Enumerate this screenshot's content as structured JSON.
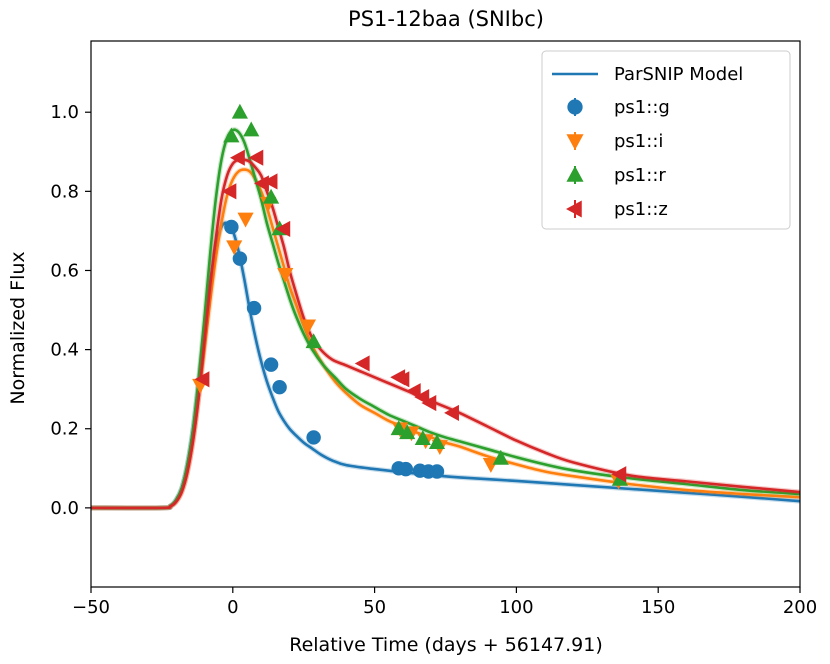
{
  "chart_data": {
    "type": "scatter",
    "title": "PS1-12baa (SNIbc)",
    "xlabel": "Relative Time (days + 56147.91)",
    "ylabel": "Normalized Flux",
    "xlim": [
      -50,
      200
    ],
    "ylim": [
      -0.2,
      1.18
    ],
    "x_ticks": [
      -50,
      0,
      50,
      100,
      150,
      200
    ],
    "x_tick_labels": [
      "−50",
      "0",
      "50",
      "100",
      "150",
      "200"
    ],
    "y_ticks": [
      0.0,
      0.2,
      0.4,
      0.6,
      0.8,
      1.0
    ],
    "y_tick_labels": [
      "0.0",
      "0.2",
      "0.4",
      "0.6",
      "0.8",
      "1.0"
    ],
    "grid": false,
    "legend_position": "top-right",
    "model_label": "ParSNIP Model",
    "model_curves": [
      {
        "band": "ps1::g",
        "color": "#1f77b4",
        "x": [
          -50,
          -25,
          -22,
          -20,
          -18,
          -16,
          -14,
          -12,
          -10,
          -8,
          -6,
          -4,
          -2,
          0,
          2,
          4,
          6,
          8,
          10,
          12,
          14,
          16,
          18,
          20,
          22,
          25,
          28,
          31,
          35,
          40,
          50,
          60,
          70,
          80,
          100,
          120,
          140,
          160,
          180,
          200
        ],
        "y": [
          0,
          0,
          0.005,
          0.02,
          0.05,
          0.11,
          0.2,
          0.32,
          0.45,
          0.57,
          0.66,
          0.71,
          0.72,
          0.7,
          0.65,
          0.58,
          0.5,
          0.43,
          0.37,
          0.32,
          0.28,
          0.245,
          0.22,
          0.2,
          0.185,
          0.165,
          0.15,
          0.135,
          0.12,
          0.108,
          0.098,
          0.09,
          0.083,
          0.077,
          0.068,
          0.058,
          0.048,
          0.038,
          0.028,
          0.017
        ]
      },
      {
        "band": "ps1::i",
        "color": "#ff7f0e",
        "x": [
          -50,
          -25,
          -22,
          -20,
          -18,
          -16,
          -14,
          -12,
          -10,
          -8,
          -6,
          -4,
          -2,
          0,
          2,
          4,
          6,
          8,
          10,
          12,
          14,
          16,
          18,
          20,
          22,
          25,
          28,
          32,
          36,
          40,
          45,
          50,
          55,
          60,
          65,
          70,
          75,
          80,
          90,
          100,
          110,
          120,
          140,
          160,
          180,
          200
        ],
        "y": [
          0,
          0,
          0.004,
          0.015,
          0.04,
          0.09,
          0.17,
          0.28,
          0.4,
          0.52,
          0.63,
          0.72,
          0.79,
          0.83,
          0.85,
          0.855,
          0.85,
          0.83,
          0.8,
          0.76,
          0.71,
          0.66,
          0.61,
          0.56,
          0.52,
          0.46,
          0.41,
          0.36,
          0.32,
          0.29,
          0.26,
          0.24,
          0.22,
          0.205,
          0.19,
          0.178,
          0.165,
          0.155,
          0.13,
          0.11,
          0.092,
          0.08,
          0.06,
          0.045,
          0.035,
          0.027
        ]
      },
      {
        "band": "ps1::r",
        "color": "#2ca02c",
        "x": [
          -50,
          -25,
          -22,
          -20,
          -18,
          -16,
          -14,
          -12,
          -10,
          -8,
          -6,
          -4,
          -2,
          0,
          2,
          4,
          6,
          8,
          10,
          12,
          14,
          16,
          18,
          20,
          22,
          25,
          28,
          32,
          36,
          40,
          45,
          50,
          55,
          60,
          65,
          70,
          75,
          80,
          90,
          100,
          110,
          120,
          140,
          160,
          180,
          200
        ],
        "y": [
          0,
          0,
          0.005,
          0.02,
          0.05,
          0.11,
          0.2,
          0.33,
          0.48,
          0.64,
          0.78,
          0.88,
          0.935,
          0.955,
          0.95,
          0.925,
          0.88,
          0.83,
          0.78,
          0.72,
          0.67,
          0.62,
          0.575,
          0.53,
          0.49,
          0.44,
          0.4,
          0.36,
          0.33,
          0.3,
          0.275,
          0.255,
          0.235,
          0.22,
          0.205,
          0.19,
          0.178,
          0.168,
          0.148,
          0.128,
          0.11,
          0.095,
          0.075,
          0.06,
          0.045,
          0.035
        ]
      },
      {
        "band": "ps1::z",
        "color": "#d62728",
        "x": [
          -50,
          -25,
          -22,
          -20,
          -18,
          -16,
          -14,
          -12,
          -10,
          -8,
          -6,
          -4,
          -2,
          0,
          2,
          4,
          6,
          8,
          10,
          12,
          14,
          16,
          18,
          20,
          22,
          25,
          28,
          31,
          35,
          40,
          45,
          50,
          55,
          60,
          65,
          70,
          75,
          80,
          90,
          100,
          110,
          120,
          140,
          160,
          180,
          200
        ],
        "y": [
          0,
          0,
          0.004,
          0.015,
          0.04,
          0.09,
          0.17,
          0.28,
          0.42,
          0.56,
          0.68,
          0.78,
          0.84,
          0.87,
          0.88,
          0.88,
          0.875,
          0.86,
          0.84,
          0.8,
          0.76,
          0.71,
          0.66,
          0.6,
          0.55,
          0.48,
          0.43,
          0.4,
          0.375,
          0.36,
          0.345,
          0.33,
          0.315,
          0.3,
          0.285,
          0.27,
          0.255,
          0.24,
          0.205,
          0.17,
          0.14,
          0.115,
          0.082,
          0.067,
          0.053,
          0.04
        ]
      }
    ],
    "series": [
      {
        "name": "ps1::g",
        "color": "#1f77b4",
        "marker": "circle",
        "x": [
          -0.5,
          2.5,
          7.5,
          13.5,
          16.5,
          28.5,
          58.5,
          61.0,
          66.0,
          69.0,
          72.0
        ],
        "y": [
          0.71,
          0.63,
          0.505,
          0.362,
          0.305,
          0.178,
          0.1,
          0.098,
          0.094,
          0.092,
          0.092
        ]
      },
      {
        "name": "ps1::i",
        "color": "#ff7f0e",
        "marker": "triangle-down",
        "x": [
          -11.5,
          0.5,
          4.5,
          12.5,
          18.5,
          26.5,
          59.0,
          63.0,
          68.0,
          73.0,
          91.0,
          136.0
        ],
        "y": [
          0.31,
          0.66,
          0.73,
          0.77,
          0.59,
          0.46,
          0.2,
          0.19,
          0.17,
          0.155,
          0.11,
          0.068
        ]
      },
      {
        "name": "ps1::r",
        "color": "#2ca02c",
        "marker": "triangle-up",
        "x": [
          -0.5,
          2.5,
          6.5,
          13.5,
          16.5,
          28.5,
          58.5,
          61.5,
          67.0,
          72.0,
          94.5,
          136.5
        ],
        "y": [
          0.94,
          1.0,
          0.955,
          0.785,
          0.705,
          0.42,
          0.2,
          0.19,
          0.175,
          0.165,
          0.125,
          0.072
        ]
      },
      {
        "name": "ps1::z",
        "color": "#d62728",
        "marker": "triangle-left",
        "x": [
          -10.5,
          -1.0,
          2.0,
          8.5,
          10.5,
          13.5,
          18.0,
          46.0,
          58.5,
          60.0,
          64.0,
          67.0,
          69.5,
          77.5,
          136.5
        ],
        "y": [
          0.325,
          0.8,
          0.885,
          0.885,
          0.82,
          0.825,
          0.705,
          0.365,
          0.33,
          0.325,
          0.295,
          0.28,
          0.265,
          0.24,
          0.085
        ]
      }
    ]
  }
}
